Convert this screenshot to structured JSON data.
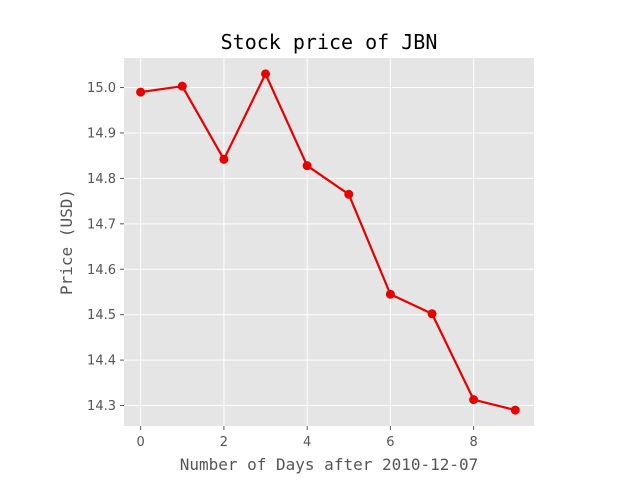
{
  "chart_data": {
    "type": "line",
    "title": "Stock price of JBN",
    "xlabel": "Number of Days after 2010-12-07",
    "ylabel": "Price (USD)",
    "xlim": [
      -0.4,
      9.45
    ],
    "ylim": [
      14.255,
      15.065
    ],
    "xticks": [
      0,
      2,
      4,
      6,
      8
    ],
    "xtick_labels": [
      "0",
      "2",
      "4",
      "6",
      "8"
    ],
    "yticks": [
      14.3,
      14.4,
      14.5,
      14.6,
      14.7,
      14.8,
      14.9,
      15.0
    ],
    "ytick_labels": [
      "14.3",
      "14.4",
      "14.5",
      "14.6",
      "14.7",
      "14.8",
      "14.9",
      "15.0"
    ],
    "grid": true,
    "series": [
      {
        "name": "JBN",
        "color": "#e60000",
        "marker": "circle",
        "x": [
          0,
          1,
          2,
          3,
          4,
          5,
          6,
          7,
          8,
          9
        ],
        "values": [
          14.99,
          15.003,
          14.842,
          15.03,
          14.828,
          14.765,
          14.545,
          14.502,
          14.313,
          14.29
        ]
      }
    ]
  },
  "style": {
    "plot_background": "#e5e5e5",
    "grid_color": "#ffffff",
    "tick_color": "#555555"
  }
}
